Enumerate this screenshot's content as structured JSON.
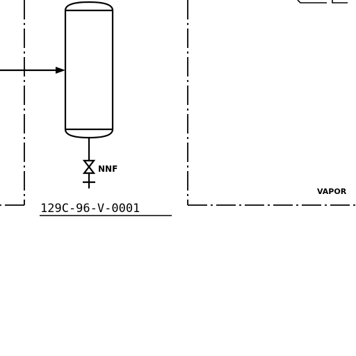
{
  "labels": {
    "valve_note": "NNF",
    "equipment_tag": "129C-96-V-0001",
    "stream_note": "VAPOR"
  },
  "colors": {
    "line": "#000000",
    "background": "#ffffff"
  }
}
